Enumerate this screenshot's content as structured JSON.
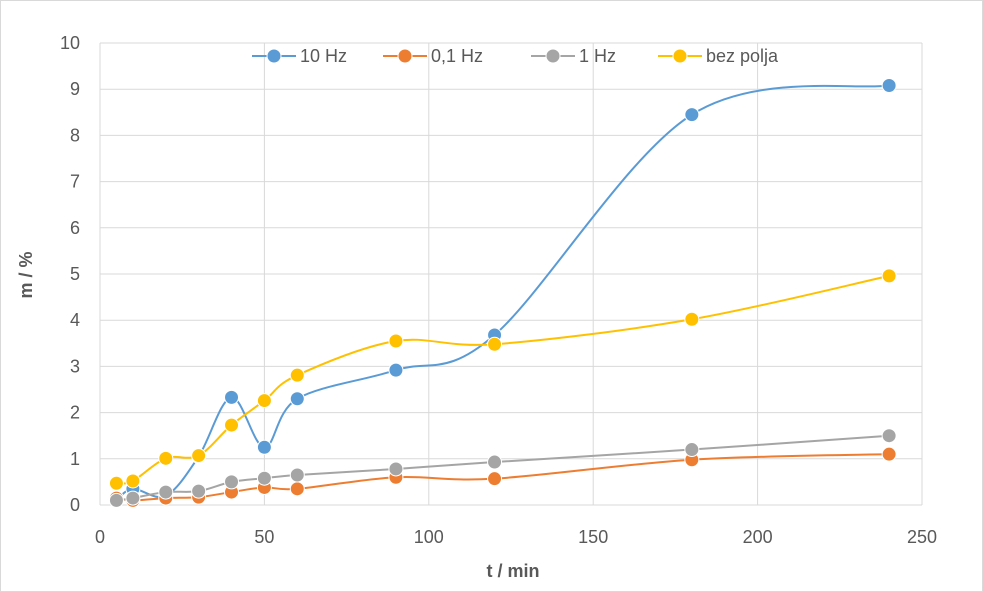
{
  "chart_data": {
    "type": "line",
    "xlabel": "t / min",
    "ylabel": "m / %",
    "xlim": [
      0,
      250
    ],
    "ylim": [
      0,
      10
    ],
    "xticks": [
      0,
      50,
      100,
      150,
      200,
      250
    ],
    "yticks": [
      0,
      1,
      2,
      3,
      4,
      5,
      6,
      7,
      8,
      9,
      10
    ],
    "grid": true,
    "smooth": true,
    "legend": "top",
    "series": [
      {
        "name": "10 Hz",
        "color": "#5b9bd5",
        "x": [
          5,
          10,
          20,
          30,
          40,
          50,
          60,
          90,
          120,
          180,
          240
        ],
        "y": [
          0.1,
          0.35,
          0.2,
          1.05,
          2.33,
          1.25,
          2.3,
          2.92,
          3.68,
          8.45,
          9.08
        ]
      },
      {
        "name": "0,1 Hz",
        "color": "#ed7d31",
        "x": [
          5,
          10,
          20,
          30,
          40,
          50,
          60,
          90,
          120,
          180,
          240
        ],
        "y": [
          0.15,
          0.1,
          0.15,
          0.17,
          0.28,
          0.38,
          0.35,
          0.6,
          0.57,
          0.98,
          1.1
        ]
      },
      {
        "name": "1 Hz",
        "color": "#a5a5a5",
        "x": [
          5,
          10,
          20,
          30,
          40,
          50,
          60,
          90,
          120,
          180,
          240
        ],
        "y": [
          0.1,
          0.15,
          0.28,
          0.3,
          0.5,
          0.58,
          0.65,
          0.78,
          0.93,
          1.2,
          1.5
        ]
      },
      {
        "name": "bez polja",
        "color": "#ffc000",
        "x": [
          5,
          10,
          20,
          30,
          40,
          50,
          60,
          90,
          120,
          180,
          240
        ],
        "y": [
          0.47,
          0.52,
          1.01,
          1.07,
          1.73,
          2.26,
          2.81,
          3.55,
          3.48,
          4.02,
          4.96
        ]
      }
    ]
  }
}
